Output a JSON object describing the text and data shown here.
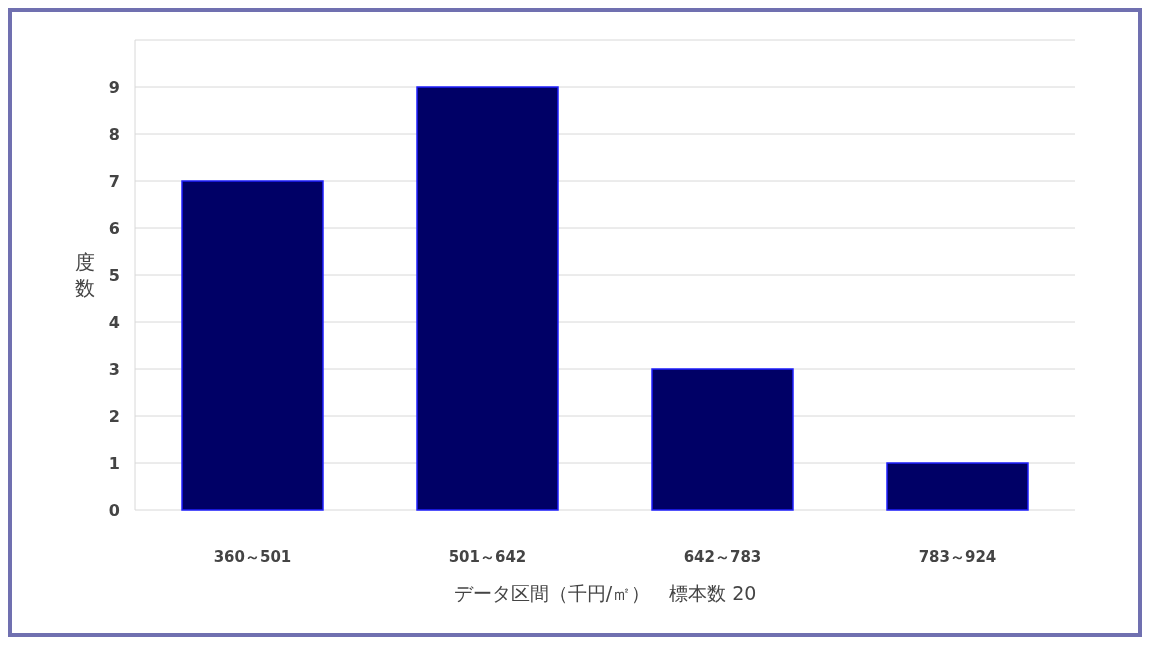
{
  "chart_data": {
    "type": "bar",
    "categories": [
      "360～501",
      "501～642",
      "642～783",
      "783～924"
    ],
    "values": [
      7,
      9,
      3,
      1
    ],
    "color": "#000066",
    "ylim": [
      0,
      10
    ],
    "yticks": [
      0,
      1,
      2,
      3,
      4,
      5,
      6,
      7,
      8,
      9
    ],
    "grid": "y",
    "ylabel": "度数",
    "xlabel": "データ区間（千円/㎡）　標本数 20"
  }
}
